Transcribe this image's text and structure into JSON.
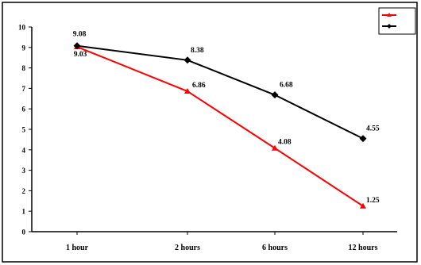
{
  "chart_data": {
    "type": "line",
    "title": "",
    "xlabel": "",
    "ylabel": "",
    "categories": [
      "1 hour",
      "2 hours",
      "6 hours",
      "12 hours"
    ],
    "ylim": [
      0,
      10
    ],
    "yticks": [
      "0",
      "1",
      "2",
      "3",
      "4",
      "5",
      "6",
      "7",
      "8",
      "9",
      "10"
    ],
    "grid": false,
    "legend_position": "top-right",
    "series": [
      {
        "name": "",
        "color": "#ff0000",
        "marker": "triangle",
        "values": [
          9.03,
          6.86,
          4.08,
          1.25
        ],
        "labels": [
          "9.03",
          "6.86",
          "4.08",
          "1.25"
        ]
      },
      {
        "name": "",
        "color": "#000000",
        "marker": "diamond",
        "values": [
          9.08,
          8.38,
          6.68,
          4.55
        ],
        "labels": [
          "9.08",
          "8.38",
          "6.68",
          "4.55"
        ]
      }
    ]
  }
}
